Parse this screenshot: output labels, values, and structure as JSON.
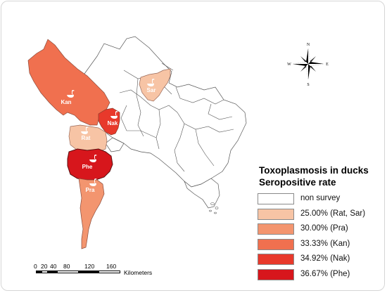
{
  "legend": {
    "title_line1": "Toxoplasmosis in ducks",
    "title_line2": "Seropositive rate",
    "items": [
      {
        "label": "non survey",
        "color": "#ffffff"
      },
      {
        "label": "25.00% (Rat, Sar)",
        "color": "#f7c4a5"
      },
      {
        "label": "30.00% (Pra)",
        "color": "#f3956f"
      },
      {
        "label": "33.33% (Kan)",
        "color": "#f0704f"
      },
      {
        "label": "34.92% (Nak)",
        "color": "#e8392b"
      },
      {
        "label": "36.67% (Phe)",
        "color": "#d7161c"
      }
    ]
  },
  "provinces": {
    "kan": {
      "label": "Kan",
      "color": "#f0704f",
      "icon": "duck-icon"
    },
    "nak": {
      "label": "Nak",
      "color": "#e8392b",
      "icon": "duck-icon"
    },
    "rat": {
      "label": "Rat",
      "color": "#f7c4a5",
      "icon": "duck-icon"
    },
    "sar": {
      "label": "Sar",
      "color": "#f7c4a5",
      "icon": "duck-icon"
    },
    "phe": {
      "label": "Phe",
      "color": "#d7161c",
      "icon": "duck-icon"
    },
    "pra": {
      "label": "Pra",
      "color": "#f3956f",
      "icon": "duck-icon"
    }
  },
  "compass": {
    "n": "N",
    "s": "S",
    "e": "E",
    "w": "W"
  },
  "scale": {
    "ticks": [
      "0",
      "20",
      "40",
      "80",
      "120",
      "160"
    ],
    "unit": "Kilometers"
  }
}
